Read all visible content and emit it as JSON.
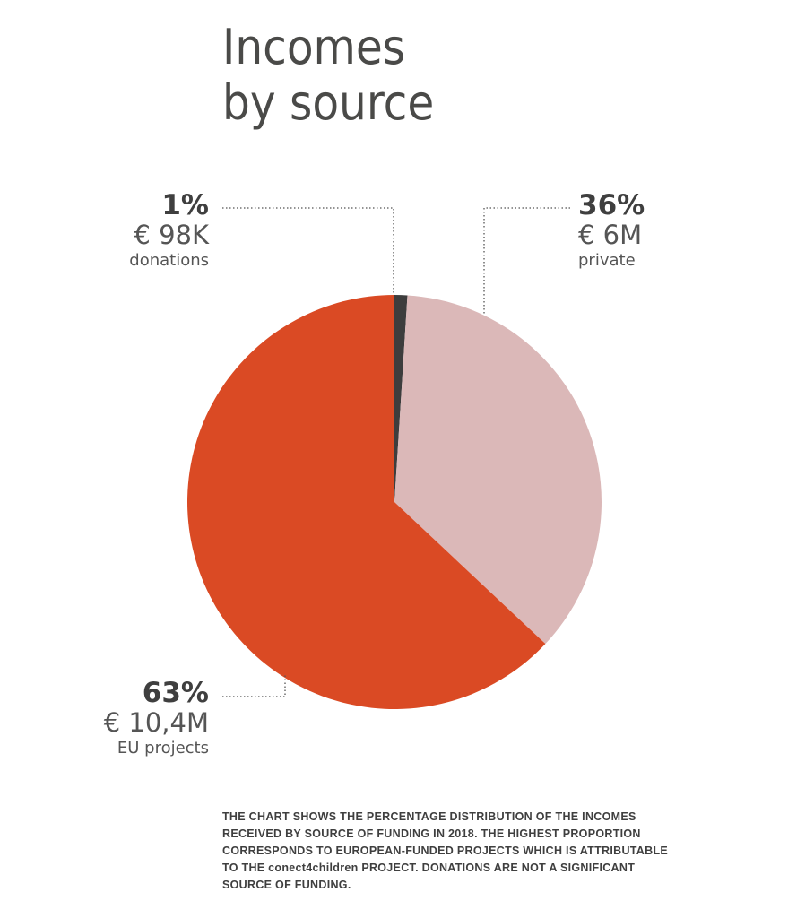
{
  "title": {
    "line1": "Incomes",
    "line2": "by source"
  },
  "chart_data": {
    "type": "pie",
    "categories": [
      "donations",
      "private",
      "EU projects"
    ],
    "values": [
      1,
      36,
      63
    ],
    "labels": [
      {
        "category": "donations",
        "percent": "1%",
        "amount": "€ 98K",
        "name": "donations",
        "color": "#3d3d3d"
      },
      {
        "category": "private",
        "percent": "36%",
        "amount": "€ 6M",
        "name": "private",
        "color": "#dbb8b8"
      },
      {
        "category": "EU projects",
        "percent": "63%",
        "amount": "€ 10,4M",
        "name": "EU projects",
        "color": "#da4a24"
      }
    ],
    "start_angle_deg": 0,
    "direction": "clockwise",
    "legend": "callouts with dotted leader lines"
  },
  "caption": "THE CHART SHOWS THE PERCENTAGE DISTRIBUTION OF THE INCOMES RECEIVED BY SOURCE OF FUNDING IN 2018. THE HIGHEST PROPORTION CORRESPONDS TO EUROPEAN-FUNDED PROJECTS WHICH IS ATTRIBUTABLE TO THE conect4children PROJECT. DONATIONS ARE NOT A SIGNIFICANT SOURCE OF FUNDING."
}
